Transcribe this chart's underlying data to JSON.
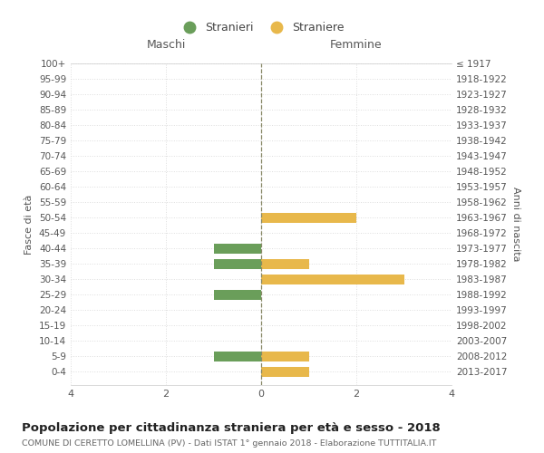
{
  "age_groups": [
    "100+",
    "95-99",
    "90-94",
    "85-89",
    "80-84",
    "75-79",
    "70-74",
    "65-69",
    "60-64",
    "55-59",
    "50-54",
    "45-49",
    "40-44",
    "35-39",
    "30-34",
    "25-29",
    "20-24",
    "15-19",
    "10-14",
    "5-9",
    "0-4"
  ],
  "birth_years": [
    "≤ 1917",
    "1918-1922",
    "1923-1927",
    "1928-1932",
    "1933-1937",
    "1938-1942",
    "1943-1947",
    "1948-1952",
    "1953-1957",
    "1958-1962",
    "1963-1967",
    "1968-1972",
    "1973-1977",
    "1978-1982",
    "1983-1987",
    "1988-1992",
    "1993-1997",
    "1998-2002",
    "2003-2007",
    "2008-2012",
    "2013-2017"
  ],
  "maschi": [
    0,
    0,
    0,
    0,
    0,
    0,
    0,
    0,
    0,
    0,
    0,
    0,
    1,
    1,
    0,
    1,
    0,
    0,
    0,
    1,
    0
  ],
  "femmine": [
    0,
    0,
    0,
    0,
    0,
    0,
    0,
    0,
    0,
    0,
    2,
    0,
    0,
    1,
    3,
    0,
    0,
    0,
    0,
    1,
    1
  ],
  "color_maschi": "#6a9e5a",
  "color_femmine": "#e8b84b",
  "title_main": "Popolazione per cittadinanza straniera per età e sesso - 2018",
  "title_sub": "COMUNE DI CERETTO LOMELLINA (PV) - Dati ISTAT 1° gennaio 2018 - Elaborazione TUTTITALIA.IT",
  "legend_maschi": "Stranieri",
  "legend_femmine": "Straniere",
  "label_maschi": "Maschi",
  "label_femmine": "Femmine",
  "ylabel_left": "Fasce di età",
  "ylabel_right": "Anni di nascita",
  "xlim": 4,
  "background_color": "#ffffff",
  "grid_color": "#cccccc",
  "grid_color_y": "#dddddd"
}
